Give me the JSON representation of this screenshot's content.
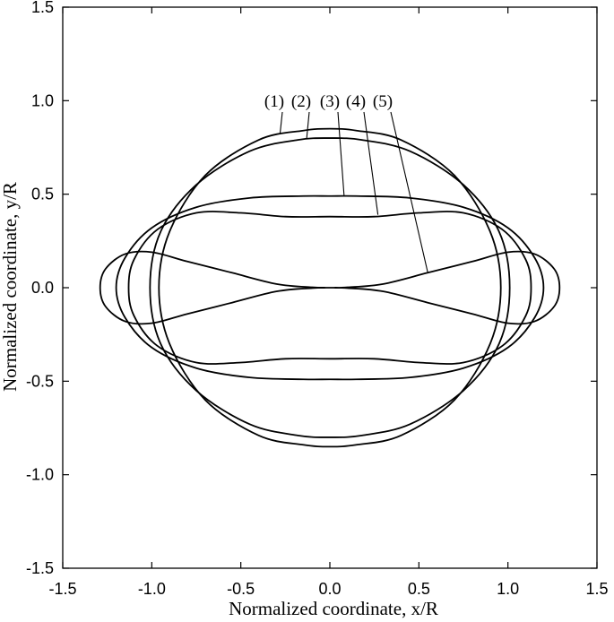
{
  "chart_data": {
    "type": "line",
    "xlabel": "Normalized coordinate, x/R",
    "ylabel": "Normalized coordinate, y/R",
    "xlim": [
      -1.5,
      1.5
    ],
    "ylim": [
      -1.5,
      1.5
    ],
    "xticks": [
      -1.5,
      -1.0,
      -0.5,
      0.0,
      0.5,
      1.0,
      1.5
    ],
    "yticks": [
      -1.5,
      -1.0,
      -0.5,
      0.0,
      0.5,
      1.0,
      1.5
    ],
    "xtick_labels": [
      "-1.5",
      "-1.0",
      "-0.5",
      "0.0",
      "0.5",
      "1.0",
      "1.5"
    ],
    "ytick_labels": [
      "-1.5",
      "-1.0",
      "-0.5",
      "0.0",
      "0.5",
      "1.0",
      "1.5"
    ],
    "grid": false,
    "closed_curves": true,
    "series": [
      {
        "name": "(1)",
        "pointer_at": [
          -0.28,
          0.82
        ],
        "points": [
          [
            0.96,
            0
          ],
          [
            0.9,
            0.3
          ],
          [
            0.7,
            0.6
          ],
          [
            0.4,
            0.79
          ],
          [
            0.15,
            0.84
          ],
          [
            0,
            0.85
          ]
        ]
      },
      {
        "name": "(2)",
        "pointer_at": [
          -0.13,
          0.8
        ],
        "points": [
          [
            1.01,
            0
          ],
          [
            0.95,
            0.3
          ],
          [
            0.75,
            0.55
          ],
          [
            0.45,
            0.73
          ],
          [
            0.18,
            0.79
          ],
          [
            0,
            0.8
          ]
        ]
      },
      {
        "name": "(3)",
        "pointer_at": [
          0.08,
          0.49
        ],
        "points": [
          [
            1.2,
            0
          ],
          [
            1.15,
            0.16
          ],
          [
            1.0,
            0.32
          ],
          [
            0.75,
            0.43
          ],
          [
            0.45,
            0.48
          ],
          [
            0.15,
            0.49
          ],
          [
            0,
            0.49
          ]
        ]
      },
      {
        "name": "(4)",
        "pointer_at": [
          0.27,
          0.39
        ],
        "points": [
          [
            1.13,
            0
          ],
          [
            1.1,
            0.15
          ],
          [
            0.97,
            0.31
          ],
          [
            0.75,
            0.4
          ],
          [
            0.5,
            0.4
          ],
          [
            0.25,
            0.38
          ],
          [
            0,
            0.38
          ]
        ]
      },
      {
        "name": "(5)",
        "pointer_at": [
          0.55,
          0.08
        ],
        "points": [
          [
            1.29,
            0
          ],
          [
            1.26,
            0.1
          ],
          [
            1.15,
            0.18
          ],
          [
            1.0,
            0.19
          ],
          [
            0.8,
            0.14
          ],
          [
            0.55,
            0.08
          ],
          [
            0.3,
            0.02
          ],
          [
            0.1,
            0.002
          ],
          [
            0,
            0
          ]
        ]
      }
    ]
  }
}
